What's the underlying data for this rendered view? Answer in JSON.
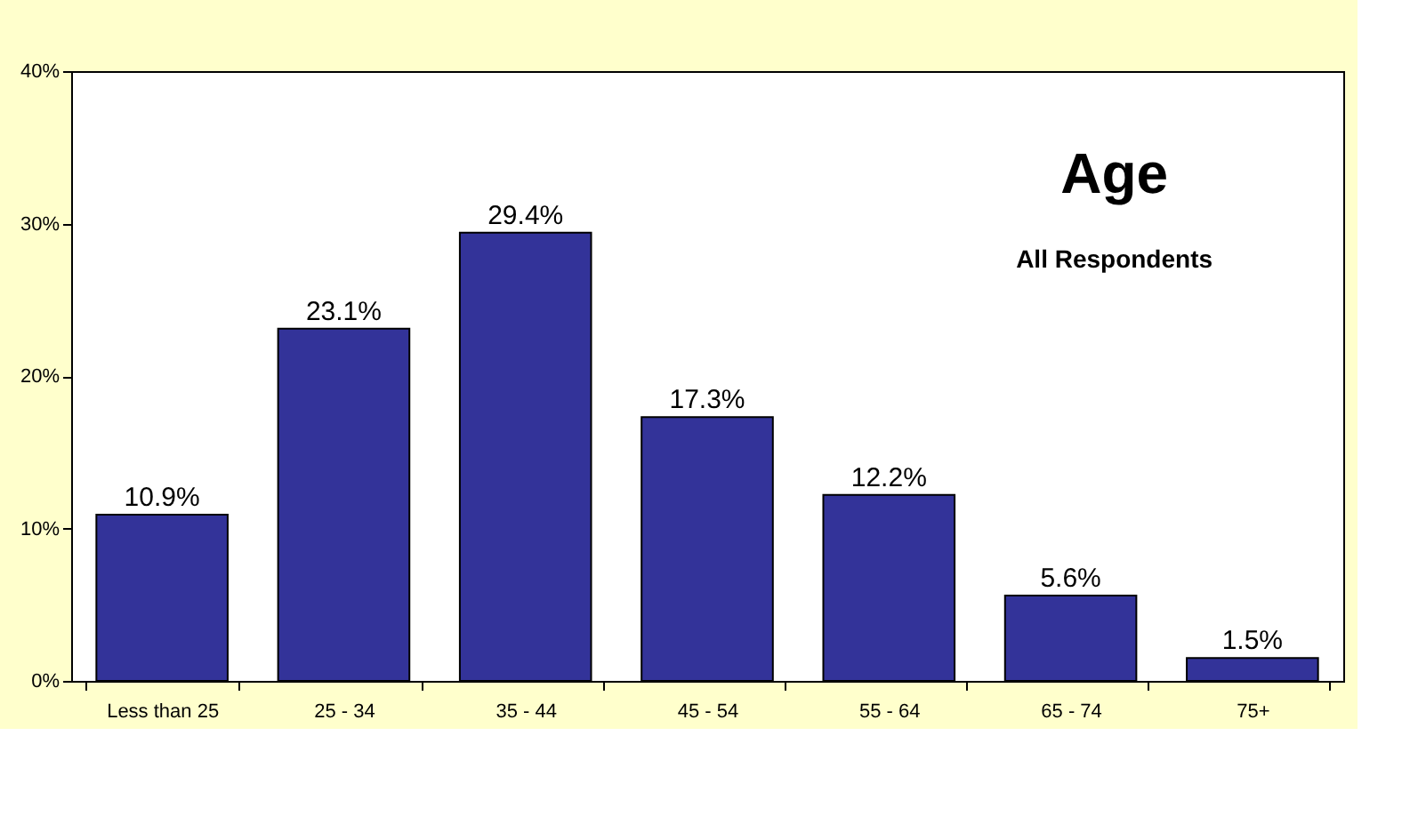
{
  "chart_data": {
    "type": "bar",
    "title": "Age",
    "subtitle": "All Respondents",
    "categories": [
      "Less than 25",
      "25 - 34",
      "35 - 44",
      "45 - 54",
      "55 - 64",
      "65 - 74",
      "75+"
    ],
    "values": [
      10.9,
      23.1,
      29.4,
      17.3,
      12.2,
      5.6,
      1.5
    ],
    "value_labels": [
      "10.9%",
      "23.1%",
      "29.4%",
      "17.3%",
      "12.2%",
      "5.6%",
      "1.5%"
    ],
    "color": "#333399",
    "ylim": [
      0,
      40
    ],
    "yticks": [
      {
        "value": 0,
        "label": "0%"
      },
      {
        "value": 10,
        "label": "10%"
      },
      {
        "value": 20,
        "label": "20%"
      },
      {
        "value": 30,
        "label": "30%"
      },
      {
        "value": 40,
        "label": "40%"
      }
    ],
    "grid": false
  }
}
